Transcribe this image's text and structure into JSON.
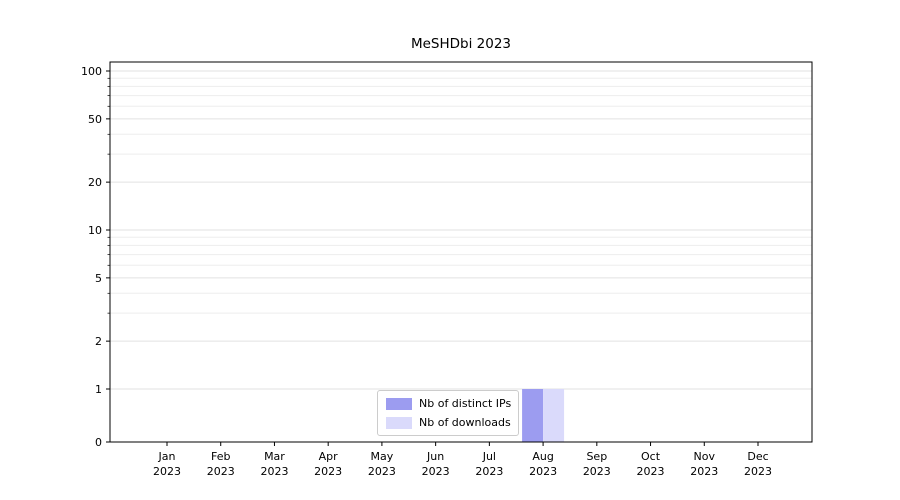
{
  "chart_data": {
    "type": "bar",
    "title": "MeSHDbi 2023",
    "categories": [
      "Jan",
      "Feb",
      "Mar",
      "Apr",
      "May",
      "Jun",
      "Jul",
      "Aug",
      "Sep",
      "Oct",
      "Nov",
      "Dec"
    ],
    "x_year_labels": [
      "2023",
      "2023",
      "2023",
      "2023",
      "2023",
      "2023",
      "2023",
      "2023",
      "2023",
      "2023",
      "2023",
      "2023"
    ],
    "series": [
      {
        "name": "Nb of distinct IPs",
        "color": "#9c9cf0",
        "values": [
          0,
          0,
          0,
          0,
          0,
          0,
          0,
          1,
          0,
          0,
          0,
          0
        ]
      },
      {
        "name": "Nb of downloads",
        "color": "#dadafb",
        "values": [
          0,
          0,
          0,
          0,
          0,
          0,
          0,
          1,
          0,
          0,
          0,
          0
        ]
      }
    ],
    "y_ticks": [
      0,
      1,
      2,
      5,
      10,
      20,
      50,
      100
    ],
    "y_minor_gridlines": [
      3,
      4,
      6,
      7,
      8,
      9,
      30,
      40,
      60,
      70,
      80,
      90
    ],
    "y_scale": "symlog",
    "ylim": [
      0,
      115
    ],
    "xlabel": "",
    "ylabel": "",
    "grid": "horizontal",
    "legend_position": "lower-center",
    "colors": {
      "axis": "#000000",
      "grid_major": "#e2e2e2",
      "grid_minor": "#ededed",
      "background": "#ffffff",
      "text": "#000000",
      "legend_border": "#cccccc"
    }
  }
}
